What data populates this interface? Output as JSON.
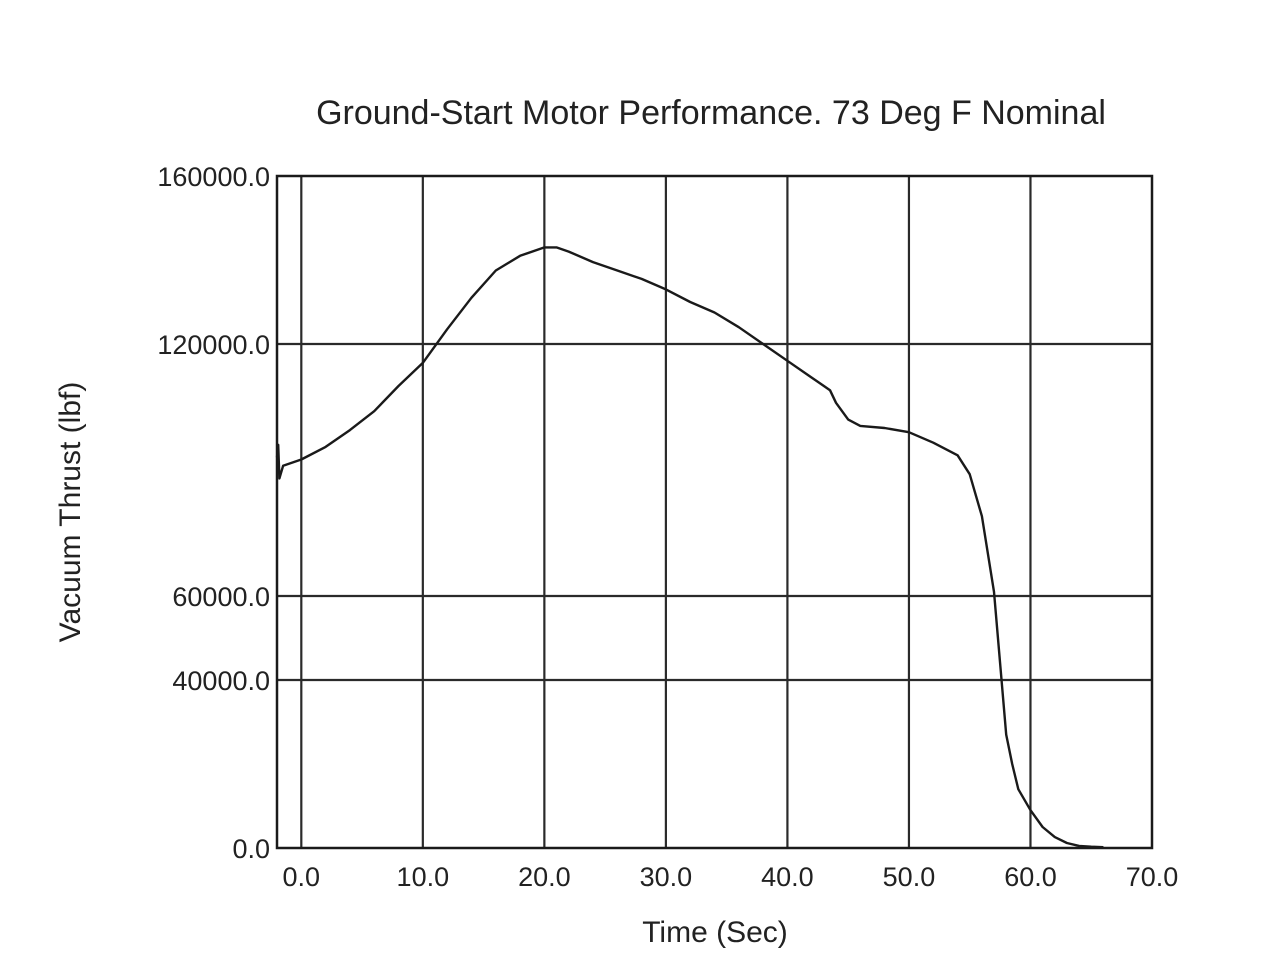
{
  "chart_data": {
    "type": "line",
    "title": "Ground-Start Motor Performance. 73 Deg F Nominal",
    "xlabel": "Time (Sec)",
    "ylabel": "Vacuum Thrust (lbf)",
    "xlim": [
      -2.0,
      70.0
    ],
    "ylim": [
      0,
      160000
    ],
    "xticks": [
      0,
      10,
      20,
      30,
      40,
      50,
      60,
      70
    ],
    "xtick_labels": [
      "0.0",
      "10.0",
      "20.0",
      "30.0",
      "40.0",
      "50.0",
      "60.0",
      "70.0"
    ],
    "yticks": [
      0,
      40000,
      60000,
      120000,
      160000
    ],
    "ytick_labels": [
      "0.0",
      "40000.0",
      "60000.0",
      "120000.0",
      "160000.0"
    ],
    "grid": true,
    "series": [
      {
        "x": [
          -2.0,
          -1.9,
          -1.8,
          -1.5,
          0,
          2,
          4,
          6,
          8,
          10,
          12,
          14,
          16,
          18,
          20,
          21,
          22,
          24,
          26,
          28,
          30,
          32,
          34,
          36,
          38,
          40,
          42,
          43,
          43.5,
          44,
          45,
          46,
          48,
          50,
          52,
          54,
          55,
          56,
          57,
          57.5,
          58,
          58.5,
          59,
          60,
          61,
          62,
          63,
          64,
          65,
          66
        ],
        "y": [
          93000,
          96000,
          88000,
          91000,
          92500,
          95500,
          99500,
          104000,
          110000,
          115500,
          123500,
          131000,
          137500,
          141000,
          143000,
          143000,
          142000,
          139500,
          137500,
          135500,
          133000,
          130000,
          127500,
          124000,
          120000,
          116000,
          112000,
          110000,
          109000,
          106000,
          102000,
          100500,
          100000,
          99000,
          96500,
          93500,
          89000,
          79000,
          61000,
          44000,
          27000,
          20000,
          14000,
          9000,
          5000,
          2600,
          1200,
          500,
          300,
          200
        ]
      }
    ]
  }
}
